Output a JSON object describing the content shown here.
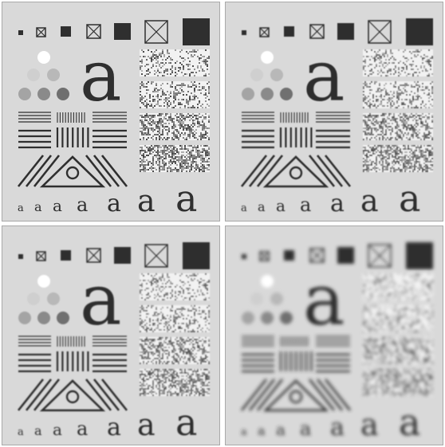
{
  "figure": {
    "panels": [
      {
        "id": "original",
        "blur": 0
      },
      {
        "id": "smoothed-small",
        "blur": 0.45
      },
      {
        "id": "smoothed-medium",
        "blur": 0.9
      },
      {
        "id": "smoothed-large",
        "blur": 2.0
      }
    ],
    "test_letter": "a",
    "colors": {
      "background": "#d9d9d9",
      "ink": "#2f2f2f",
      "frame": "#a9a9a9",
      "circle_levels": [
        "#ffffff",
        "#cfcfcf",
        "#b8b8b8",
        "#a4a4a4",
        "#8a8a8a",
        "#6f6f6f",
        "#3a3a3a"
      ]
    }
  }
}
